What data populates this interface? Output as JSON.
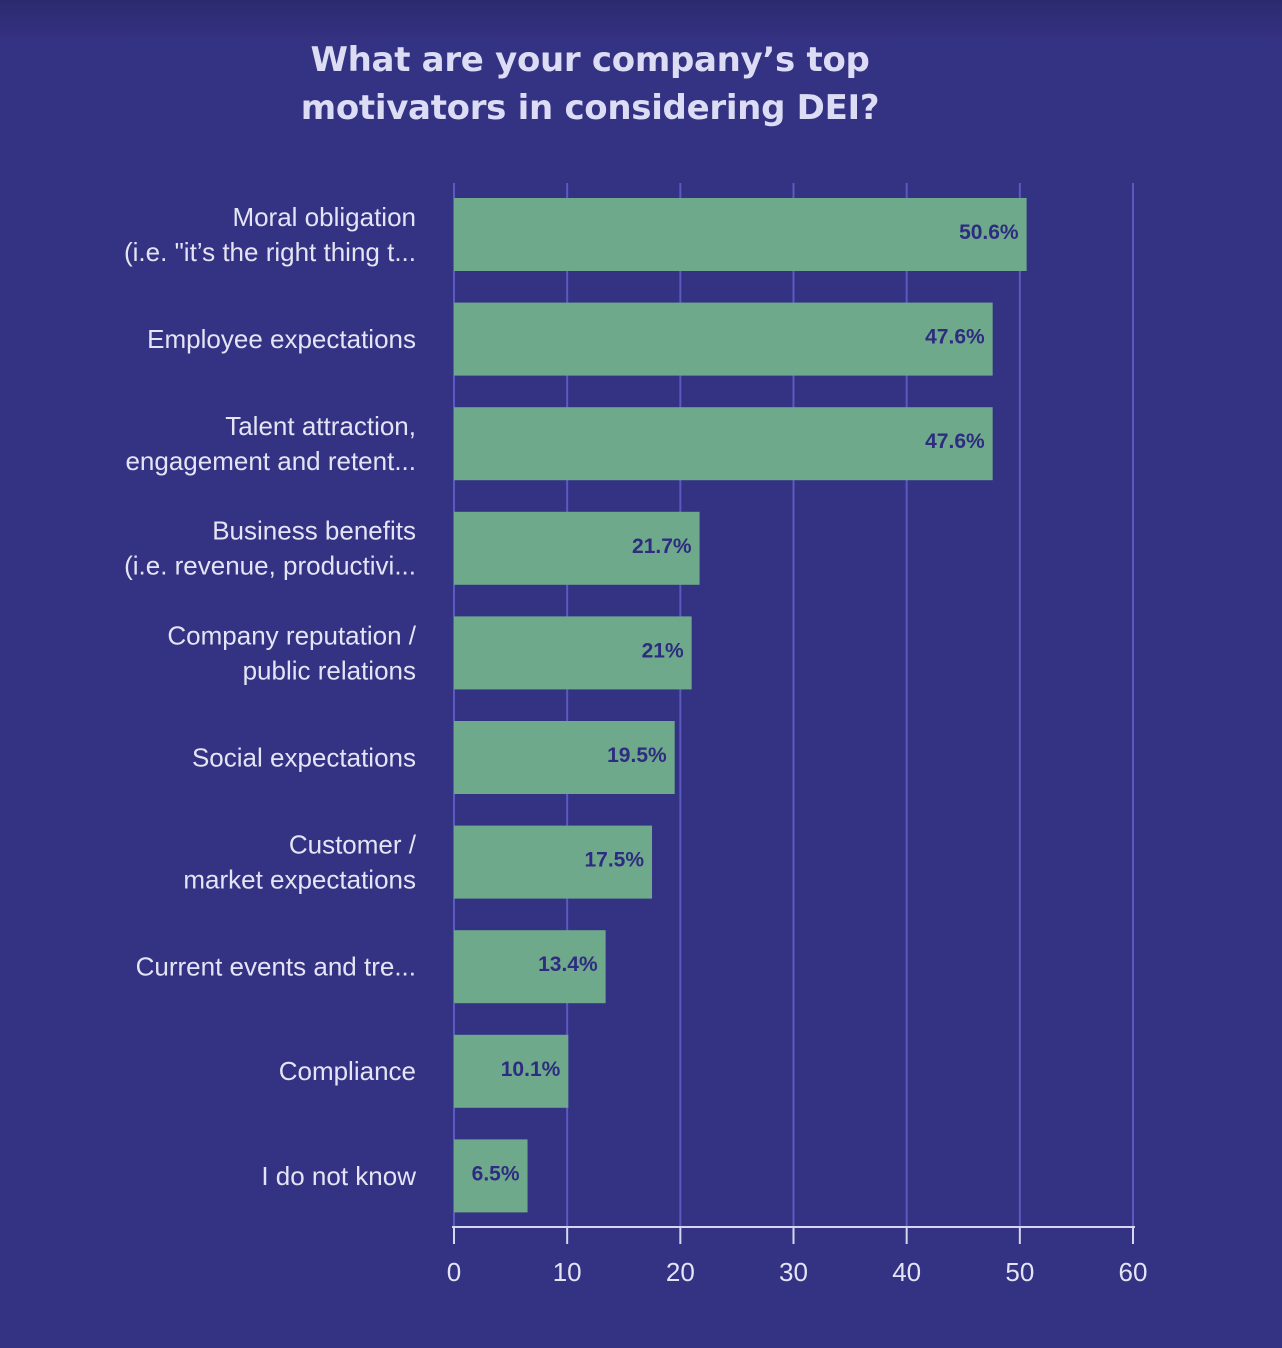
{
  "chart_data": {
    "type": "bar",
    "orientation": "horizontal",
    "title": [
      "What are your company’s top",
      "motivators in considering DEI?"
    ],
    "categories": [
      [
        "Moral obligation",
        "(i.e. \"it’s the right thing t..."
      ],
      [
        "Employee expectations"
      ],
      [
        "Talent attraction,",
        "engagement and retent..."
      ],
      [
        "Business benefits",
        "(i.e. revenue, productivi..."
      ],
      [
        "Company reputation /",
        "public relations"
      ],
      [
        "Social expectations"
      ],
      [
        "Customer /",
        "market expectations"
      ],
      [
        "Current events and tre..."
      ],
      [
        "Compliance"
      ],
      [
        "I do not know"
      ]
    ],
    "values": [
      50.6,
      47.6,
      47.6,
      21.7,
      21,
      19.5,
      17.5,
      13.4,
      10.1,
      6.5
    ],
    "value_labels": [
      "50.6%",
      "47.6%",
      "47.6%",
      "21.7%",
      "21%",
      "19.5%",
      "17.5%",
      "13.4%",
      "10.1%",
      "6.5%"
    ],
    "xlim": [
      0,
      60
    ],
    "xticks": [
      0,
      10,
      20,
      30,
      40,
      50,
      60
    ],
    "xlabel": "",
    "ylabel": "",
    "grid": true,
    "colors": {
      "background": "#343282",
      "bar": "#6ea98b",
      "grid": "#5a5ac0",
      "axis": "#d6d6ee",
      "text": "#e4e4f6",
      "value_text": "#2e2c80"
    }
  }
}
